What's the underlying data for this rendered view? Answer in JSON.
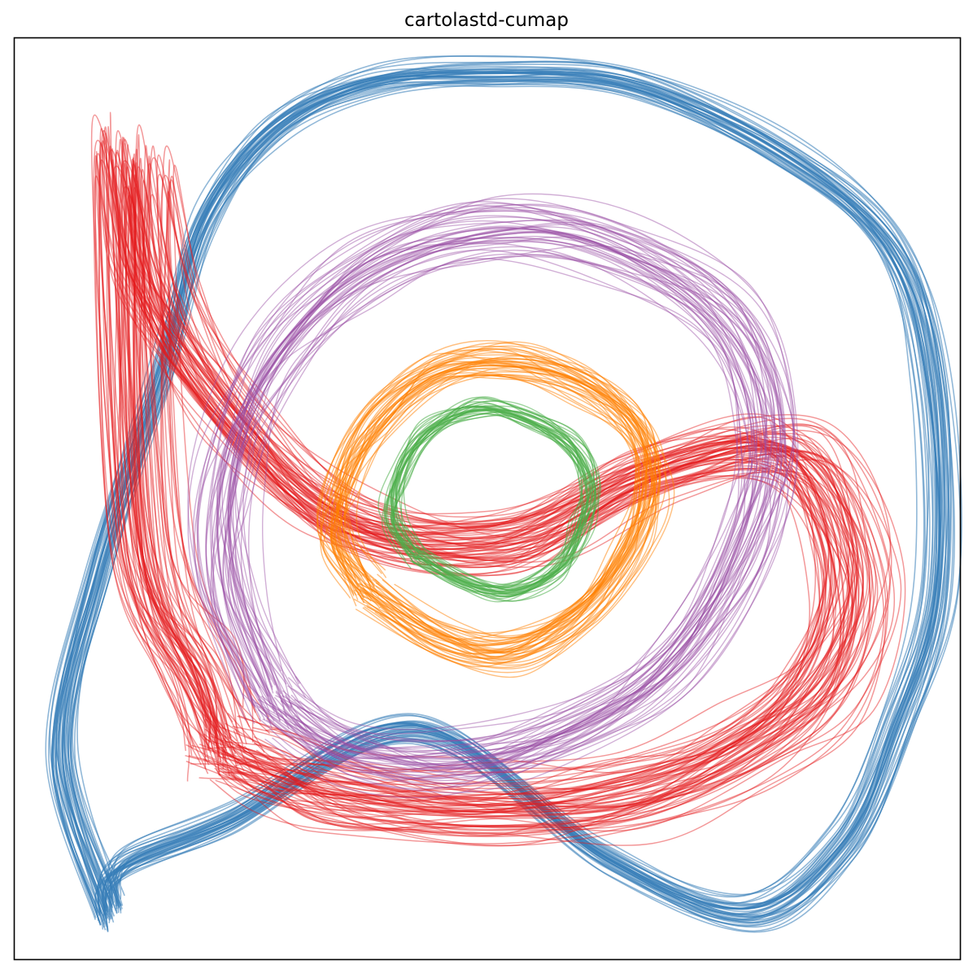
{
  "chart_data": {
    "type": "line",
    "title": "cartolastd-cumap",
    "xlabel": "",
    "ylabel": "",
    "xlim": [
      -1,
      1
    ],
    "ylim": [
      -1,
      1
    ],
    "grid": false,
    "axis_ticks": false,
    "colors": {
      "blue": "#377eb8",
      "red": "#e41a1c",
      "purple": "#984ea3",
      "orange": "#ff7f00",
      "green": "#4daf4a"
    },
    "series": [
      {
        "color": "#377eb8",
        "x": [
          -0.8,
          -0.78,
          -0.55,
          -0.15,
          0.25,
          0.55,
          0.75,
          0.86,
          0.95,
          0.94,
          0.85,
          0.62,
          0.3,
          0.0,
          -0.25,
          -0.45,
          -0.6,
          -0.68,
          -0.82,
          -0.9,
          -0.8
        ],
        "y": [
          -0.9,
          -0.8,
          -0.7,
          -0.5,
          -0.78,
          -0.9,
          -0.75,
          -0.5,
          -0.2,
          0.25,
          0.55,
          0.75,
          0.9,
          0.92,
          0.9,
          0.8,
          0.6,
          0.3,
          -0.15,
          -0.55,
          -0.9
        ]
      },
      {
        "color": "#e41a1c",
        "x": [
          -0.55,
          -0.45,
          -0.3,
          0.0,
          0.3,
          0.55,
          0.72,
          0.78,
          0.65,
          0.35,
          0.05,
          -0.3,
          -0.55,
          -0.7,
          -0.75,
          -0.72,
          -0.6,
          -0.55
        ],
        "y": [
          -0.55,
          -0.6,
          -0.65,
          -0.68,
          -0.65,
          -0.55,
          -0.4,
          -0.15,
          0.1,
          0.05,
          -0.1,
          -0.05,
          0.2,
          0.45,
          0.72,
          -0.1,
          -0.4,
          -0.55
        ]
      },
      {
        "color": "#984ea3",
        "x": [
          -0.45,
          -0.3,
          -0.05,
          0.2,
          0.4,
          0.55,
          0.6,
          0.5,
          0.25,
          0.0,
          -0.25,
          -0.45,
          -0.55,
          -0.55,
          -0.45
        ],
        "y": [
          -0.45,
          -0.55,
          -0.58,
          -0.5,
          -0.35,
          -0.1,
          0.15,
          0.4,
          0.55,
          0.58,
          0.5,
          0.3,
          0.05,
          -0.2,
          -0.45
        ]
      },
      {
        "color": "#ff7f00",
        "x": [
          -0.25,
          -0.1,
          0.05,
          0.2,
          0.3,
          0.35,
          0.32,
          0.2,
          0.05,
          -0.1,
          -0.22,
          -0.3,
          -0.32,
          -0.25
        ],
        "y": [
          -0.2,
          -0.3,
          -0.33,
          -0.25,
          -0.12,
          0.02,
          0.15,
          0.25,
          0.3,
          0.28,
          0.18,
          0.05,
          -0.08,
          -0.2
        ]
      },
      {
        "color": "#4daf4a",
        "x": [
          -0.15,
          -0.05,
          0.05,
          0.15,
          0.2,
          0.22,
          0.18,
          0.08,
          -0.02,
          -0.12,
          -0.18,
          -0.2,
          -0.15
        ],
        "y": [
          -0.12,
          -0.18,
          -0.2,
          -0.15,
          -0.06,
          0.03,
          0.12,
          0.18,
          0.2,
          0.15,
          0.06,
          -0.04,
          -0.12
        ]
      }
    ]
  }
}
